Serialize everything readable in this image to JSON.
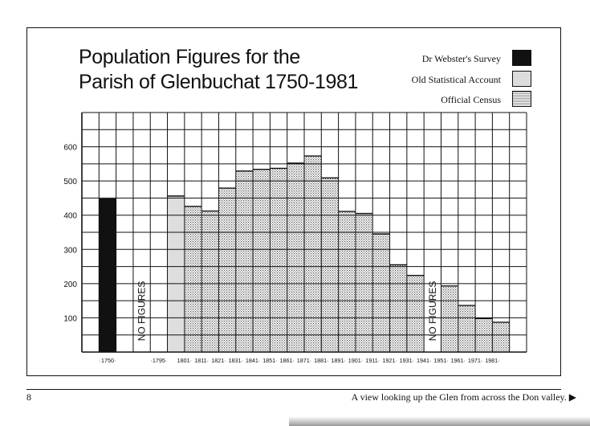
{
  "chart_data": {
    "type": "bar",
    "title_lines": [
      "Population Figures for the",
      "Parish of Glenbuchat 1750-1981"
    ],
    "xlabel": "",
    "ylabel": "",
    "ylim": [
      0,
      700
    ],
    "yticks": [
      100,
      200,
      300,
      400,
      500,
      600
    ],
    "grid": true,
    "legend_position": "top-right",
    "series": [
      {
        "name": "Dr Webster's Survey",
        "style": "solid-black",
        "color": "#111111",
        "x": [
          "1750"
        ],
        "values": [
          447
        ]
      },
      {
        "name": "Old Statistical Account",
        "style": "light-grey",
        "color": "#d9d9d9",
        "x": [
          "1795"
        ],
        "values": [
          456
        ]
      },
      {
        "name": "Official Census",
        "style": "stipple",
        "color": "#bdbdbd",
        "x": [
          "1801",
          "1811",
          "1821",
          "1831",
          "1841",
          "1851",
          "1861",
          "1871",
          "1881",
          "1891",
          "1901",
          "1911",
          "1921",
          "1931",
          "1951",
          "1961",
          "1971",
          "1981"
        ],
        "values": [
          426,
          412,
          479,
          529,
          534,
          537,
          552,
          573,
          509,
          411,
          405,
          345,
          255,
          224,
          193,
          136,
          98,
          87
        ]
      }
    ],
    "gap_labels": [
      {
        "text": "NO FIGURES",
        "between": [
          "1750",
          "1795"
        ]
      },
      {
        "text": "NO FIGURES",
        "between": [
          "1931",
          "1951"
        ]
      }
    ],
    "x_tick_labels": [
      "·1750·",
      "·1795·",
      "1801·",
      "1811·",
      "1821·",
      "1831·",
      "1841·",
      "1851·",
      "1861·",
      "1871·",
      "1881·",
      "1891·",
      "1901·",
      "1911·",
      "1921·",
      "1931·",
      "1941·",
      "1951·",
      "1961·",
      "1971·",
      "1981·"
    ]
  },
  "legend": [
    {
      "label": "Dr Webster's Survey",
      "style": "solid"
    },
    {
      "label": "Old Statistical Account",
      "style": "light"
    },
    {
      "label": "Official Census",
      "style": "stipple"
    }
  ],
  "footer": {
    "page_number": "8",
    "caption": "A view looking up the Glen from across the Don valley. ▶"
  }
}
